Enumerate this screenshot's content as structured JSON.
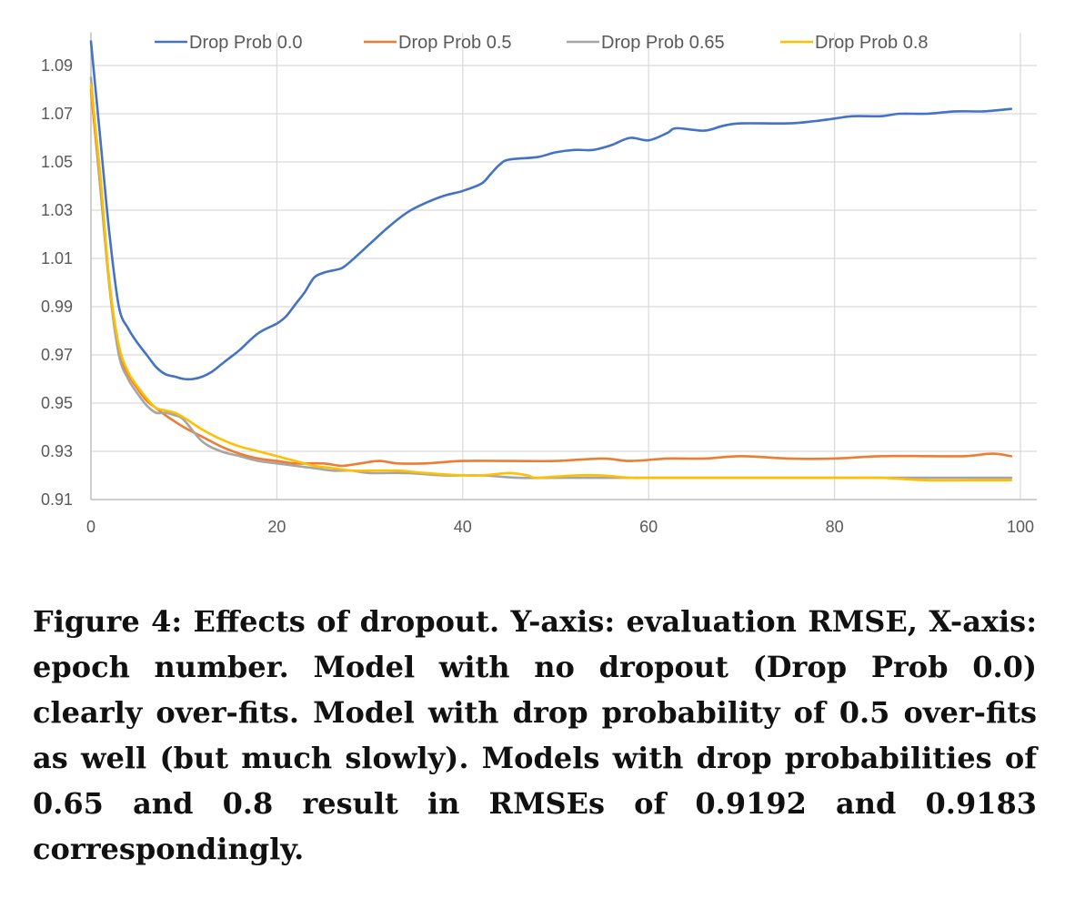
{
  "chart_data": {
    "type": "line",
    "title": "",
    "xlabel": "",
    "ylabel": "",
    "xlim": [
      0,
      100
    ],
    "ylim": [
      0.91,
      1.1
    ],
    "x_ticks": [
      0,
      20,
      40,
      60,
      80,
      100
    ],
    "y_ticks": [
      0.91,
      0.93,
      0.95,
      0.97,
      0.99,
      1.01,
      1.03,
      1.05,
      1.07,
      1.09
    ],
    "x_tick_labels": [
      "0",
      "20",
      "40",
      "60",
      "80",
      "100"
    ],
    "y_tick_labels": [
      "0.91",
      "0.93",
      "0.95",
      "0.97",
      "0.99",
      "1.01",
      "1.03",
      "1.05",
      "1.07",
      "1.09"
    ],
    "grid": true,
    "legend_position": "top",
    "series": [
      {
        "name": "Drop Prob 0.0",
        "color": "#4472C4",
        "points": [
          [
            0,
            1.1
          ],
          [
            1,
            1.06
          ],
          [
            2,
            1.02
          ],
          [
            3,
            0.99
          ],
          [
            4,
            0.981
          ],
          [
            5,
            0.975
          ],
          [
            6,
            0.97
          ],
          [
            7,
            0.965
          ],
          [
            8,
            0.962
          ],
          [
            9,
            0.961
          ],
          [
            10,
            0.96
          ],
          [
            11,
            0.96
          ],
          [
            12,
            0.961
          ],
          [
            13,
            0.963
          ],
          [
            14,
            0.966
          ],
          [
            15,
            0.969
          ],
          [
            16,
            0.972
          ],
          [
            18,
            0.979
          ],
          [
            20,
            0.983
          ],
          [
            21,
            0.986
          ],
          [
            22,
            0.991
          ],
          [
            23,
            0.996
          ],
          [
            24,
            1.002
          ],
          [
            25,
            1.004
          ],
          [
            26,
            1.005
          ],
          [
            27,
            1.006
          ],
          [
            28,
            1.009
          ],
          [
            30,
            1.016
          ],
          [
            32,
            1.023
          ],
          [
            34,
            1.029
          ],
          [
            36,
            1.033
          ],
          [
            38,
            1.036
          ],
          [
            40,
            1.038
          ],
          [
            42,
            1.041
          ],
          [
            43,
            1.045
          ],
          [
            44,
            1.049
          ],
          [
            45,
            1.051
          ],
          [
            48,
            1.052
          ],
          [
            50,
            1.054
          ],
          [
            52,
            1.055
          ],
          [
            54,
            1.055
          ],
          [
            56,
            1.057
          ],
          [
            58,
            1.06
          ],
          [
            60,
            1.059
          ],
          [
            62,
            1.062
          ],
          [
            63,
            1.064
          ],
          [
            66,
            1.063
          ],
          [
            68,
            1.065
          ],
          [
            70,
            1.066
          ],
          [
            75,
            1.066
          ],
          [
            78,
            1.067
          ],
          [
            80,
            1.068
          ],
          [
            82,
            1.069
          ],
          [
            85,
            1.069
          ],
          [
            87,
            1.07
          ],
          [
            90,
            1.07
          ],
          [
            93,
            1.071
          ],
          [
            96,
            1.071
          ],
          [
            99,
            1.072
          ]
        ]
      },
      {
        "name": "Drop Prob 0.5",
        "color": "#ED7D31",
        "points": [
          [
            0,
            1.08
          ],
          [
            1,
            1.04
          ],
          [
            2,
            1.0
          ],
          [
            3,
            0.972
          ],
          [
            4,
            0.962
          ],
          [
            5,
            0.956
          ],
          [
            6,
            0.951
          ],
          [
            7,
            0.948
          ],
          [
            8,
            0.945
          ],
          [
            10,
            0.94
          ],
          [
            12,
            0.936
          ],
          [
            14,
            0.932
          ],
          [
            16,
            0.929
          ],
          [
            18,
            0.927
          ],
          [
            20,
            0.926
          ],
          [
            22,
            0.925
          ],
          [
            25,
            0.925
          ],
          [
            27,
            0.924
          ],
          [
            29,
            0.925
          ],
          [
            31,
            0.926
          ],
          [
            33,
            0.925
          ],
          [
            36,
            0.925
          ],
          [
            40,
            0.926
          ],
          [
            45,
            0.926
          ],
          [
            50,
            0.926
          ],
          [
            55,
            0.927
          ],
          [
            58,
            0.926
          ],
          [
            62,
            0.927
          ],
          [
            66,
            0.927
          ],
          [
            70,
            0.928
          ],
          [
            75,
            0.927
          ],
          [
            80,
            0.927
          ],
          [
            85,
            0.928
          ],
          [
            90,
            0.928
          ],
          [
            94,
            0.928
          ],
          [
            97,
            0.929
          ],
          [
            99,
            0.928
          ]
        ]
      },
      {
        "name": "Drop Prob 0.65",
        "color": "#A5A5A5",
        "points": [
          [
            0,
            1.085
          ],
          [
            1,
            1.04
          ],
          [
            2,
            0.998
          ],
          [
            3,
            0.97
          ],
          [
            4,
            0.96
          ],
          [
            5,
            0.954
          ],
          [
            6,
            0.949
          ],
          [
            7,
            0.946
          ],
          [
            8,
            0.946
          ],
          [
            9,
            0.945
          ],
          [
            10,
            0.943
          ],
          [
            12,
            0.934
          ],
          [
            14,
            0.93
          ],
          [
            16,
            0.928
          ],
          [
            18,
            0.926
          ],
          [
            20,
            0.925
          ],
          [
            22,
            0.924
          ],
          [
            24,
            0.923
          ],
          [
            26,
            0.922
          ],
          [
            28,
            0.922
          ],
          [
            30,
            0.921
          ],
          [
            34,
            0.921
          ],
          [
            38,
            0.92
          ],
          [
            42,
            0.92
          ],
          [
            46,
            0.919
          ],
          [
            50,
            0.919
          ],
          [
            55,
            0.919
          ],
          [
            60,
            0.919
          ],
          [
            65,
            0.919
          ],
          [
            70,
            0.919
          ],
          [
            75,
            0.919
          ],
          [
            80,
            0.919
          ],
          [
            85,
            0.919
          ],
          [
            90,
            0.919
          ],
          [
            95,
            0.919
          ],
          [
            99,
            0.919
          ]
        ]
      },
      {
        "name": "Drop Prob 0.8",
        "color": "#FFC000",
        "points": [
          [
            0,
            1.082
          ],
          [
            1,
            1.045
          ],
          [
            2,
            1.0
          ],
          [
            3,
            0.974
          ],
          [
            4,
            0.963
          ],
          [
            5,
            0.957
          ],
          [
            6,
            0.952
          ],
          [
            7,
            0.948
          ],
          [
            8,
            0.947
          ],
          [
            9,
            0.946
          ],
          [
            10,
            0.944
          ],
          [
            12,
            0.939
          ],
          [
            14,
            0.935
          ],
          [
            16,
            0.932
          ],
          [
            18,
            0.93
          ],
          [
            20,
            0.928
          ],
          [
            22,
            0.926
          ],
          [
            24,
            0.924
          ],
          [
            26,
            0.923
          ],
          [
            28,
            0.922
          ],
          [
            30,
            0.922
          ],
          [
            33,
            0.922
          ],
          [
            36,
            0.921
          ],
          [
            40,
            0.92
          ],
          [
            42,
            0.92
          ],
          [
            45,
            0.921
          ],
          [
            47,
            0.92
          ],
          [
            48,
            0.919
          ],
          [
            52,
            0.92
          ],
          [
            55,
            0.92
          ],
          [
            58,
            0.919
          ],
          [
            60,
            0.919
          ],
          [
            65,
            0.919
          ],
          [
            70,
            0.919
          ],
          [
            75,
            0.919
          ],
          [
            80,
            0.919
          ],
          [
            85,
            0.919
          ],
          [
            90,
            0.918
          ],
          [
            95,
            0.918
          ],
          [
            99,
            0.918
          ]
        ]
      }
    ]
  },
  "caption": "Figure 4: Effects of dropout. Y-axis: evaluation RMSE, X-axis: epoch number. Model with no dropout (Drop Prob 0.0) clearly over-fits. Model with drop probability of 0.5 over-fits as well (but much slowly). Models with drop probabilities of 0.65 and 0.8 result in RMSEs of 0.9192 and 0.9183 correspondingly."
}
